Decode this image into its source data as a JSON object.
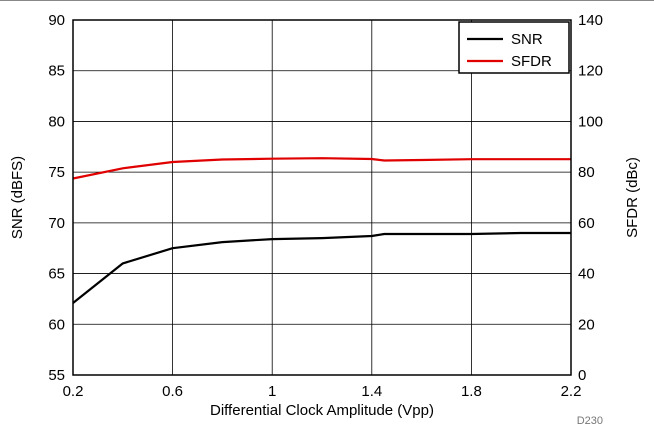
{
  "chart_data": {
    "type": "line",
    "xlabel": "Differential Clock Amplitude (Vpp)",
    "ylabel_left": "SNR (dBFS)",
    "ylabel_right": "SFDR (dBc)",
    "figure_id": "D230",
    "xlim": [
      0.2,
      2.2
    ],
    "xticks": [
      "0.2",
      "0.6",
      "1",
      "1.4",
      "1.8",
      "2.2"
    ],
    "ylim_left": [
      55,
      90
    ],
    "yticks_left": [
      "55",
      "60",
      "65",
      "70",
      "75",
      "80",
      "85",
      "90"
    ],
    "ylim_right": [
      0,
      140
    ],
    "yticks_right": [
      "0",
      "20",
      "40",
      "60",
      "80",
      "100",
      "120",
      "140"
    ],
    "grid": true,
    "legend_position": "top-right",
    "series": [
      {
        "name": "SNR",
        "axis": "left",
        "color": "#000000",
        "x": [
          0.2,
          0.4,
          0.6,
          0.8,
          1.0,
          1.2,
          1.4,
          1.45,
          1.6,
          1.8,
          2.0,
          2.2
        ],
        "y": [
          62.1,
          66.0,
          67.5,
          68.1,
          68.4,
          68.5,
          68.7,
          68.9,
          68.9,
          68.9,
          69.0,
          69.0
        ]
      },
      {
        "name": "SFDR",
        "axis": "right",
        "color": "#e00000",
        "x": [
          0.2,
          0.4,
          0.6,
          0.8,
          1.0,
          1.2,
          1.4,
          1.45,
          1.6,
          1.8,
          2.0,
          2.2
        ],
        "y": [
          77.5,
          81.5,
          84.0,
          85.0,
          85.3,
          85.5,
          85.2,
          84.6,
          84.8,
          85.1,
          85.1,
          85.1
        ]
      }
    ]
  }
}
